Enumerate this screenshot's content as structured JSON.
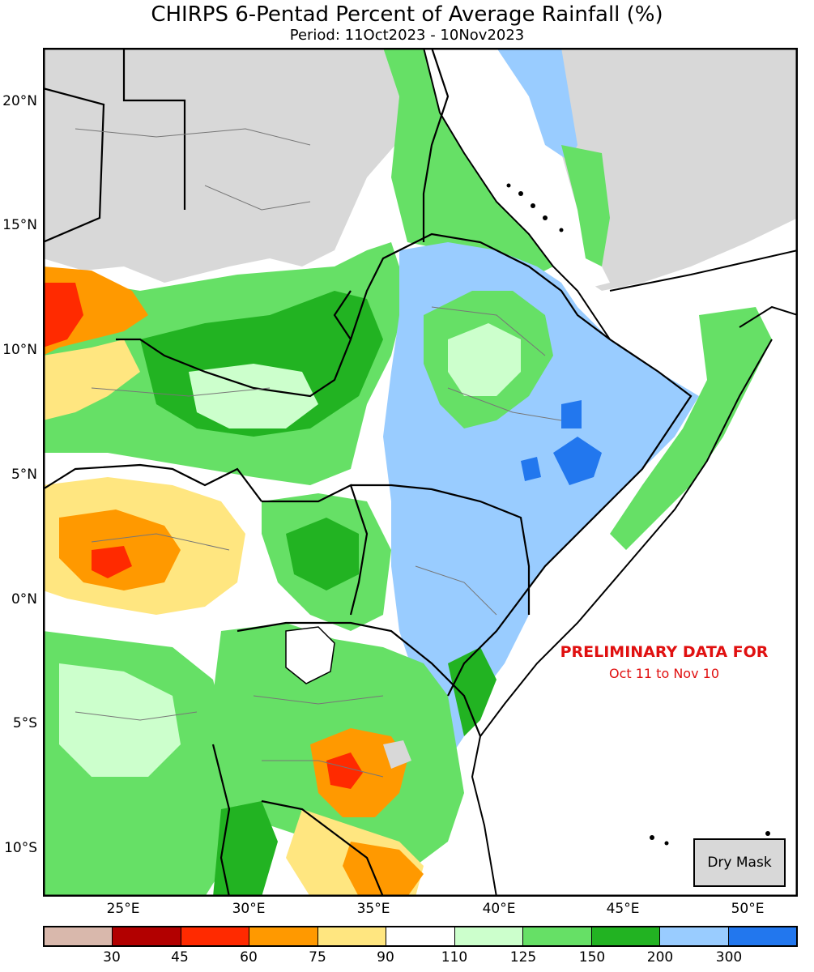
{
  "title": "CHIRPS 6-Pentad Percent of Average Rainfall (%)",
  "subtitle": "Period: 11Oct2023 - 10Nov2023",
  "latitude_labels": [
    "20°N",
    "15°N",
    "10°N",
    "5°N",
    "0°N",
    "5°S",
    "10°S"
  ],
  "longitude_labels": [
    "25°E",
    "30°E",
    "35°E",
    "40°E",
    "45°E",
    "50°E"
  ],
  "annotation": {
    "line1": "PRELIMINARY DATA FOR",
    "line2": "Oct 11 to Nov 10"
  },
  "dry_mask_label": "Dry Mask",
  "colorbar": {
    "colors": [
      "#d9b8ac",
      "#b20000",
      "#ff2a00",
      "#ff9900",
      "#ffe680",
      "#ffffff",
      "#ccffcc",
      "#66e066",
      "#22b322",
      "#99ccff",
      "#2277ee"
    ],
    "tick_labels": [
      "30",
      "45",
      "60",
      "75",
      "90",
      "110",
      "125",
      "150",
      "200",
      "300"
    ]
  },
  "legend_colors": {
    "dry_mask": "#d8d8d8",
    "water": "#ffffff",
    "annotation": "#e01010"
  }
}
